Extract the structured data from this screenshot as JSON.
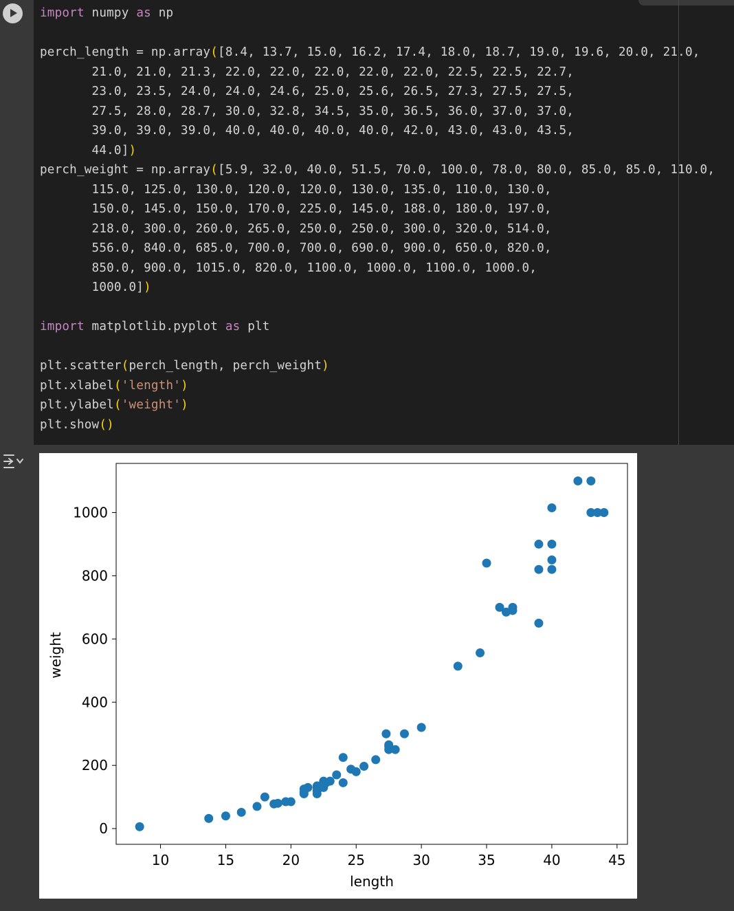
{
  "code_cell": {
    "run_button": "run-cell",
    "lines": [
      [
        {
          "c": "kw",
          "t": "import"
        },
        {
          "t": " numpy "
        },
        {
          "c": "kw",
          "t": "as"
        },
        {
          "t": " np"
        }
      ],
      [],
      [
        {
          "t": "perch_length = np.array"
        },
        {
          "c": "par",
          "t": "("
        },
        {
          "t": "[8.4, 13.7, 15.0, 16.2, 17.4, 18.0, 18.7, 19.0, 19.6, 20.0, 21.0,"
        }
      ],
      [
        {
          "t": "       21.0, 21.0, 21.3, 22.0, 22.0, 22.0, 22.0, 22.0, 22.5, 22.5, 22.7,"
        }
      ],
      [
        {
          "t": "       23.0, 23.5, 24.0, 24.0, 24.6, 25.0, 25.6, 26.5, 27.3, 27.5, 27.5,"
        }
      ],
      [
        {
          "t": "       27.5, 28.0, 28.7, 30.0, 32.8, 34.5, 35.0, 36.5, 36.0, 37.0, 37.0,"
        }
      ],
      [
        {
          "t": "       39.0, 39.0, 39.0, 40.0, 40.0, 40.0, 40.0, 42.0, 43.0, 43.0, 43.5,"
        }
      ],
      [
        {
          "t": "       44.0]"
        },
        {
          "c": "par",
          "t": ")"
        }
      ],
      [
        {
          "t": "perch_weight = np.array"
        },
        {
          "c": "par",
          "t": "("
        },
        {
          "t": "[5.9, 32.0, 40.0, 51.5, 70.0, 100.0, 78.0, 80.0, 85.0, 85.0, 110.0,"
        }
      ],
      [
        {
          "t": "       115.0, 125.0, 130.0, 120.0, 120.0, 130.0, 135.0, 110.0, 130.0,"
        }
      ],
      [
        {
          "t": "       150.0, 145.0, 150.0, 170.0, 225.0, 145.0, 188.0, 180.0, 197.0,"
        }
      ],
      [
        {
          "t": "       218.0, 300.0, 260.0, 265.0, 250.0, 250.0, 300.0, 320.0, 514.0,"
        }
      ],
      [
        {
          "t": "       556.0, 840.0, 685.0, 700.0, 700.0, 690.0, 900.0, 650.0, 820.0,"
        }
      ],
      [
        {
          "t": "       850.0, 900.0, 1015.0, 820.0, 1100.0, 1000.0, 1100.0, 1000.0,"
        }
      ],
      [
        {
          "t": "       1000.0]"
        },
        {
          "c": "par",
          "t": ")"
        }
      ],
      [],
      [
        {
          "c": "kw",
          "t": "import"
        },
        {
          "t": " matplotlib.pyplot "
        },
        {
          "c": "kw",
          "t": "as"
        },
        {
          "t": " plt"
        }
      ],
      [],
      [
        {
          "t": "plt.scatter"
        },
        {
          "c": "par",
          "t": "("
        },
        {
          "t": "perch_length, perch_weight"
        },
        {
          "c": "par",
          "t": ")"
        }
      ],
      [
        {
          "t": "plt.xlabel"
        },
        {
          "c": "par",
          "t": "("
        },
        {
          "c": "str",
          "t": "'length'"
        },
        {
          "c": "par",
          "t": ")"
        }
      ],
      [
        {
          "t": "plt.ylabel"
        },
        {
          "c": "par",
          "t": "("
        },
        {
          "c": "str",
          "t": "'weight'"
        },
        {
          "c": "par",
          "t": ")"
        }
      ],
      [
        {
          "t": "plt.show"
        },
        {
          "c": "par",
          "t": "()"
        }
      ]
    ]
  },
  "output": {
    "toggle_icon": "output-toggle-icon"
  },
  "colors": {
    "marker": "#1f77b4"
  },
  "chart_data": {
    "type": "scatter",
    "title": "",
    "xlabel": "length",
    "ylabel": "weight",
    "xlim": [
      6.6,
      45.8
    ],
    "ylim": [
      -49.8,
      1155.5
    ],
    "xticks": [
      10,
      15,
      20,
      25,
      30,
      35,
      40,
      45
    ],
    "yticks": [
      0,
      200,
      400,
      600,
      800,
      1000
    ],
    "grid": false,
    "x": [
      8.4,
      13.7,
      15.0,
      16.2,
      17.4,
      18.0,
      18.7,
      19.0,
      19.6,
      20.0,
      21.0,
      21.0,
      21.0,
      21.3,
      22.0,
      22.0,
      22.0,
      22.0,
      22.0,
      22.5,
      22.5,
      22.7,
      23.0,
      23.5,
      24.0,
      24.0,
      24.6,
      25.0,
      25.6,
      26.5,
      27.3,
      27.5,
      27.5,
      27.5,
      28.0,
      28.7,
      30.0,
      32.8,
      34.5,
      35.0,
      36.5,
      36.0,
      37.0,
      37.0,
      39.0,
      39.0,
      39.0,
      40.0,
      40.0,
      40.0,
      40.0,
      42.0,
      43.0,
      43.0,
      43.5,
      44.0
    ],
    "y": [
      5.9,
      32.0,
      40.0,
      51.5,
      70.0,
      100.0,
      78.0,
      80.0,
      85.0,
      85.0,
      110.0,
      115.0,
      125.0,
      130.0,
      120.0,
      120.0,
      130.0,
      135.0,
      110.0,
      130.0,
      150.0,
      145.0,
      150.0,
      170.0,
      225.0,
      145.0,
      188.0,
      180.0,
      197.0,
      218.0,
      300.0,
      260.0,
      265.0,
      250.0,
      250.0,
      300.0,
      320.0,
      514.0,
      556.0,
      840.0,
      685.0,
      700.0,
      700.0,
      690.0,
      900.0,
      650.0,
      820.0,
      850.0,
      900.0,
      1015.0,
      820.0,
      1100.0,
      1000.0,
      1100.0,
      1000.0,
      1000.0
    ]
  }
}
